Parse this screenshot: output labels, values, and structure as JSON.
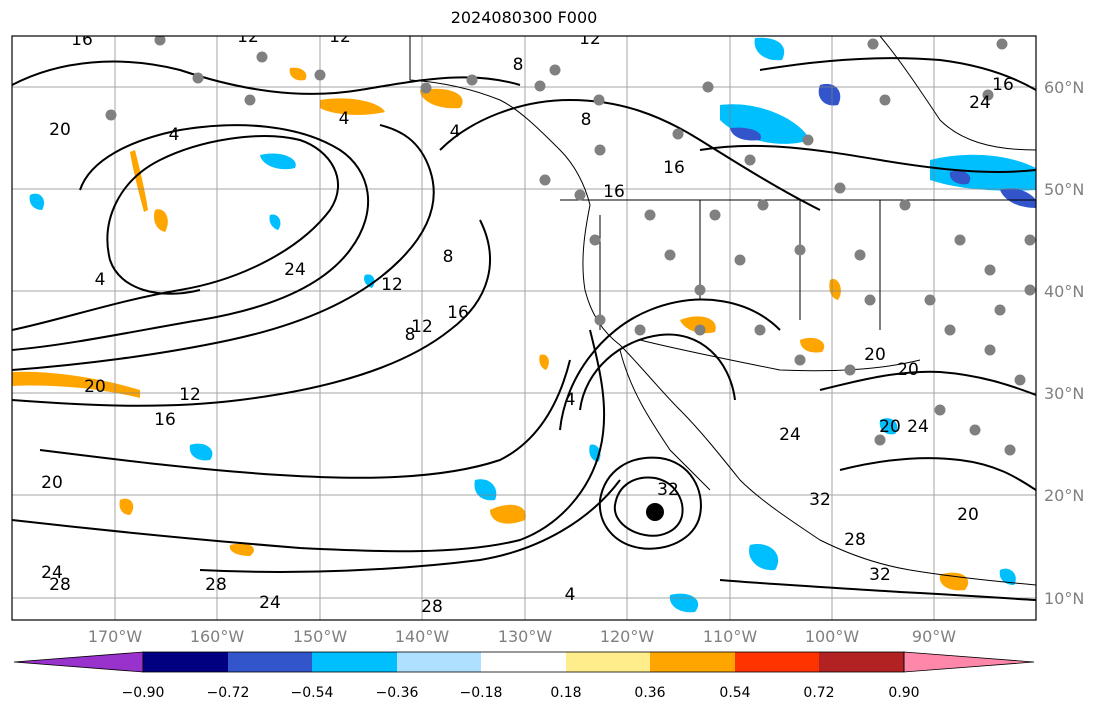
{
  "title": "2024080300 F000",
  "map": {
    "lon_range": [
      -180,
      -80
    ],
    "lat_range": [
      8,
      65
    ],
    "lat_labels": [
      "60°N",
      "50°N",
      "40°N",
      "30°N",
      "20°N",
      "10°N"
    ],
    "lon_labels": [
      "170°W",
      "160°W",
      "150°W",
      "140°W",
      "130°W",
      "120°W",
      "110°W",
      "100°W",
      "90°W"
    ],
    "contour_labels": [
      "16",
      "12",
      "12",
      "12",
      "8",
      "8",
      "4",
      "4",
      "4",
      "20",
      "12",
      "16",
      "20",
      "12",
      "16",
      "20",
      "24",
      "28",
      "28",
      "24",
      "32",
      "32",
      "32",
      "20",
      "24",
      "16",
      "16",
      "24",
      "20",
      "12",
      "8",
      "4",
      "4",
      "16",
      "20",
      "24",
      "28",
      "24",
      "28",
      "20",
      "4",
      "8"
    ],
    "colors": {
      "gridline": "#808080",
      "contour": "#000000",
      "point": "#808080",
      "positive_fill": "#ffa500",
      "negative_fill": "#00bfff"
    }
  },
  "colorbar": {
    "ticks": [
      "−0.90",
      "−0.72",
      "−0.54",
      "−0.36",
      "−0.18",
      "0.18",
      "0.36",
      "0.54",
      "0.72",
      "0.90"
    ],
    "colors": [
      "#9932cc",
      "#000080",
      "#3355cc",
      "#00bfff",
      "#b0e0ff",
      "#ffffff",
      "#ffec8b",
      "#ffa500",
      "#ff3300",
      "#b22222",
      "#ff88aa"
    ]
  }
}
